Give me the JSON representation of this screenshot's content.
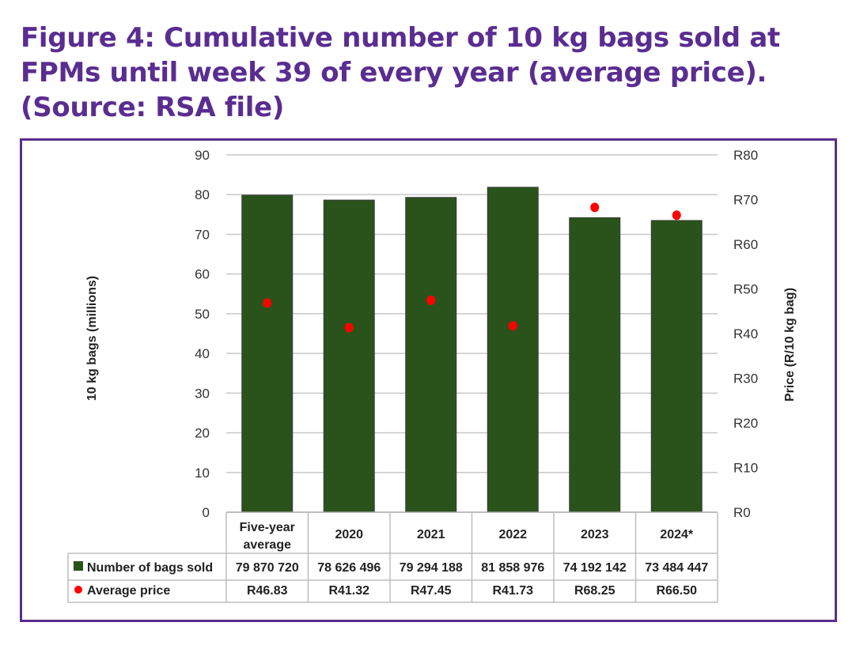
{
  "title": {
    "line1": "Figure 4: Cumulative number of 10 kg bags sold at",
    "line2": "FPMs until week 39 of every year (average price).",
    "line3": "(Source: RSA file)"
  },
  "colors": {
    "bar": "#2a531b",
    "dot": "#ff0000",
    "frame": "#5b2d8e",
    "title": "#5a2d91",
    "grid": "#c8c8c8"
  },
  "chart_data": {
    "type": "bar",
    "title": "Figure 4: Cumulative number of 10 kg bags sold at FPMs until week 39 of every year (average price). (Source: RSA file)",
    "categories": [
      [
        "Five-year",
        "average"
      ],
      [
        "2020"
      ],
      [
        "2021"
      ],
      [
        "2022"
      ],
      [
        "2023"
      ],
      [
        "2024*"
      ]
    ],
    "ylabel": "10 kg bags (millions)",
    "y2label": "Price (R/10 kg bag)",
    "ylim": [
      0,
      90
    ],
    "y2lim": [
      0,
      80
    ],
    "yticks": [
      "0",
      "10",
      "20",
      "30",
      "40",
      "50",
      "60",
      "70",
      "80",
      "90"
    ],
    "y2ticks": [
      "R0",
      "R10",
      "R20",
      "R30",
      "R40",
      "R50",
      "R60",
      "R70",
      "R80"
    ],
    "grid": true,
    "series": [
      {
        "name": "Number of bags sold",
        "type": "bar",
        "axis": "left",
        "values_millions": [
          79.87072,
          78.626496,
          79.294188,
          81.858976,
          74.192142,
          73.484447
        ],
        "labels": [
          "79 870 720",
          "78 626 496",
          "79 294 188",
          "81 858 976",
          "74 192 142",
          "73 484 447"
        ]
      },
      {
        "name": "Average price",
        "type": "scatter",
        "axis": "right",
        "values": [
          46.83,
          41.32,
          47.45,
          41.73,
          68.25,
          66.5
        ],
        "labels": [
          "R46.83",
          "R41.32",
          "R47.45",
          "R41.73",
          "R68.25",
          "R66.50"
        ]
      }
    ]
  }
}
